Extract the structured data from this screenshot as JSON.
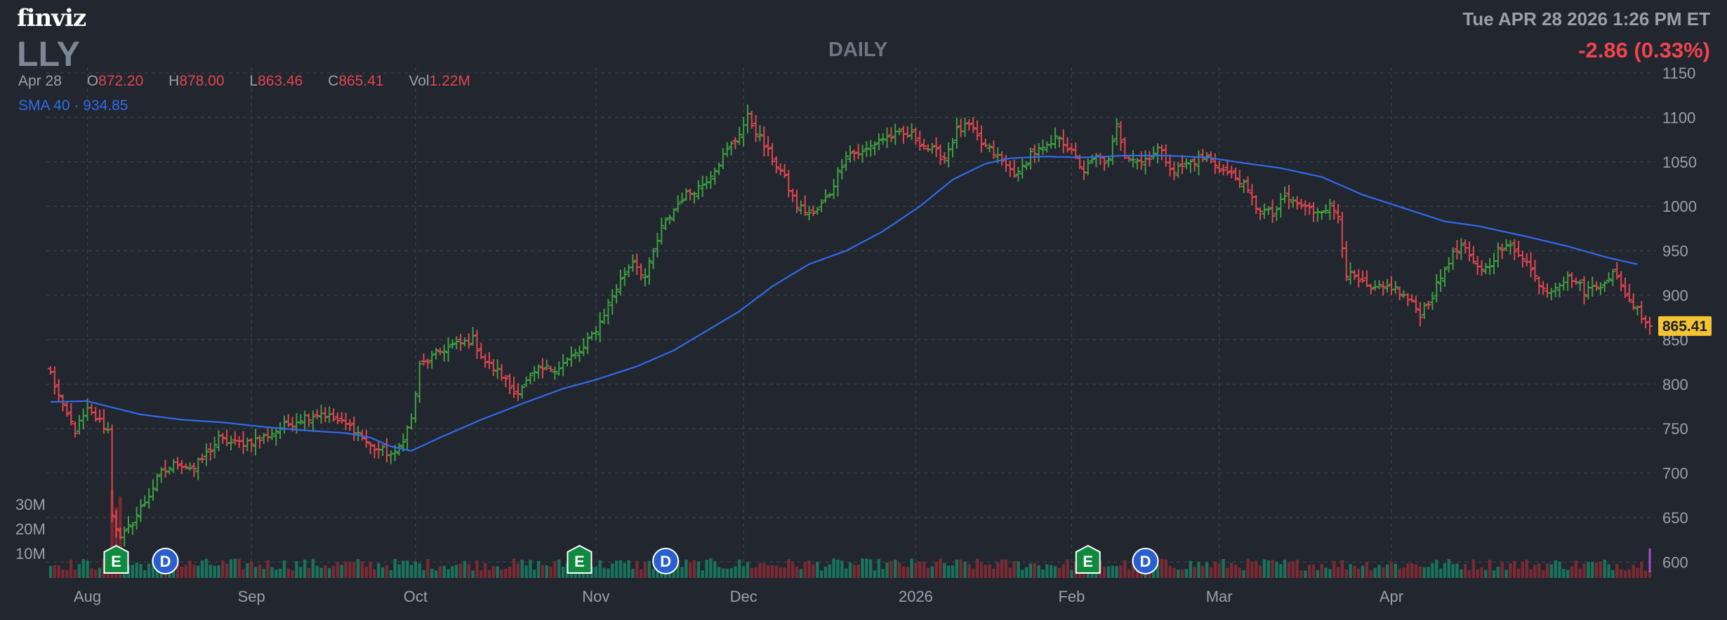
{
  "header": {
    "logo": "finviz",
    "ticker": "LLY",
    "period": "DAILY",
    "datetime": "Tue APR 28 2026 1:26 PM ET",
    "change": "-2.86 (0.33%)"
  },
  "ohlc": {
    "date": "Apr 28",
    "open_label": "O",
    "open": "872.20",
    "high_label": "H",
    "high": "878.00",
    "low_label": "L",
    "low": "863.46",
    "close_label": "C",
    "close": "865.41",
    "vol_label": "Vol",
    "vol": "1.22M"
  },
  "sma": {
    "label": "SMA 40",
    "separator": "·",
    "value": "934.85"
  },
  "colors": {
    "background": "#22262f",
    "up": "#3f9e43",
    "down": "#e0464e",
    "sma": "#2f6be8",
    "vol_up": "#18735a",
    "vol_down": "#7a2a33",
    "grid": "#3a3f4a",
    "last_price_bg": "#f4c430"
  },
  "chart_data": {
    "type": "ohlc",
    "ylim": [
      590,
      1150
    ],
    "y_ticks": [
      600,
      650,
      700,
      750,
      800,
      850,
      900,
      950,
      1000,
      1050,
      1100,
      1150
    ],
    "x_tick_labels": [
      "Aug",
      "Sep",
      "Oct",
      "Nov",
      "Dec",
      "2026",
      "Feb",
      "Mar",
      "Apr"
    ],
    "x_tick_index": [
      9,
      49,
      89,
      133,
      169,
      211,
      249,
      285,
      327
    ],
    "last_price": "865.41",
    "volume_axis": {
      "ticks": [
        "10M",
        "20M",
        "30M"
      ],
      "values": [
        10,
        20,
        30
      ],
      "max": 40,
      "unit": "M"
    },
    "events": [
      {
        "type": "E",
        "index": 16
      },
      {
        "type": "D",
        "index": 28
      },
      {
        "type": "E",
        "index": 129
      },
      {
        "type": "D",
        "index": 150
      },
      {
        "type": "E",
        "index": 253
      },
      {
        "type": "D",
        "index": 267
      }
    ],
    "close_anchors": [
      [
        0,
        812
      ],
      [
        3,
        773
      ],
      [
        6,
        748
      ],
      [
        9,
        770
      ],
      [
        12,
        758
      ],
      [
        14,
        748
      ],
      [
        15,
        655
      ],
      [
        17,
        625
      ],
      [
        19,
        638
      ],
      [
        23,
        668
      ],
      [
        27,
        700
      ],
      [
        31,
        712
      ],
      [
        35,
        705
      ],
      [
        41,
        738
      ],
      [
        45,
        733
      ],
      [
        51,
        738
      ],
      [
        55,
        748
      ],
      [
        61,
        762
      ],
      [
        66,
        768
      ],
      [
        71,
        756
      ],
      [
        74,
        750
      ],
      [
        78,
        730
      ],
      [
        84,
        720
      ],
      [
        88,
        760
      ],
      [
        90,
        820
      ],
      [
        96,
        840
      ],
      [
        103,
        850
      ],
      [
        106,
        825
      ],
      [
        110,
        810
      ],
      [
        113,
        790
      ],
      [
        119,
        815
      ],
      [
        124,
        820
      ],
      [
        130,
        840
      ],
      [
        134,
        870
      ],
      [
        137,
        900
      ],
      [
        140,
        925
      ],
      [
        142,
        940
      ],
      [
        145,
        920
      ],
      [
        149,
        975
      ],
      [
        154,
        1010
      ],
      [
        159,
        1025
      ],
      [
        163,
        1050
      ],
      [
        167,
        1075
      ],
      [
        170,
        1100
      ],
      [
        172,
        1085
      ],
      [
        175,
        1060
      ],
      [
        178,
        1040
      ],
      [
        182,
        1000
      ],
      [
        186,
        990
      ],
      [
        190,
        1015
      ],
      [
        194,
        1060
      ],
      [
        198,
        1060
      ],
      [
        202,
        1075
      ],
      [
        206,
        1080
      ],
      [
        210,
        1080
      ],
      [
        214,
        1065
      ],
      [
        218,
        1055
      ],
      [
        221,
        1085
      ],
      [
        224,
        1090
      ],
      [
        227,
        1070
      ],
      [
        230,
        1060
      ],
      [
        233,
        1045
      ],
      [
        236,
        1035
      ],
      [
        239,
        1060
      ],
      [
        243,
        1065
      ],
      [
        246,
        1080
      ],
      [
        249,
        1060
      ],
      [
        252,
        1040
      ],
      [
        255,
        1055
      ],
      [
        258,
        1050
      ],
      [
        260,
        1090
      ],
      [
        262,
        1060
      ],
      [
        266,
        1050
      ],
      [
        270,
        1065
      ],
      [
        274,
        1040
      ],
      [
        278,
        1050
      ],
      [
        282,
        1055
      ],
      [
        286,
        1040
      ],
      [
        290,
        1030
      ],
      [
        294,
        1000
      ],
      [
        298,
        990
      ],
      [
        301,
        1010
      ],
      [
        305,
        1000
      ],
      [
        308,
        995
      ],
      [
        312,
        1000
      ],
      [
        314,
        990
      ],
      [
        316,
        925
      ],
      [
        319,
        915
      ],
      [
        322,
        905
      ],
      [
        327,
        910
      ],
      [
        331,
        895
      ],
      [
        334,
        880
      ],
      [
        337,
        900
      ],
      [
        341,
        940
      ],
      [
        344,
        955
      ],
      [
        347,
        935
      ],
      [
        350,
        930
      ],
      [
        353,
        950
      ],
      [
        356,
        955
      ],
      [
        359,
        945
      ],
      [
        362,
        920
      ],
      [
        365,
        905
      ],
      [
        368,
        915
      ],
      [
        371,
        920
      ],
      [
        374,
        905
      ],
      [
        377,
        910
      ],
      [
        381,
        925
      ],
      [
        385,
        895
      ],
      [
        388,
        878
      ],
      [
        390,
        865
      ]
    ],
    "sma_anchors": [
      [
        0,
        780
      ],
      [
        9,
        781
      ],
      [
        14,
        775
      ],
      [
        22,
        766
      ],
      [
        32,
        760
      ],
      [
        42,
        757
      ],
      [
        52,
        752
      ],
      [
        62,
        748
      ],
      [
        72,
        745
      ],
      [
        78,
        740
      ],
      [
        83,
        730
      ],
      [
        88,
        725
      ],
      [
        95,
        740
      ],
      [
        105,
        760
      ],
      [
        115,
        778
      ],
      [
        125,
        795
      ],
      [
        133,
        805
      ],
      [
        143,
        820
      ],
      [
        152,
        838
      ],
      [
        160,
        860
      ],
      [
        168,
        882
      ],
      [
        176,
        910
      ],
      [
        185,
        935
      ],
      [
        194,
        950
      ],
      [
        203,
        972
      ],
      [
        212,
        1000
      ],
      [
        220,
        1030
      ],
      [
        228,
        1048
      ],
      [
        234,
        1054
      ],
      [
        242,
        1056
      ],
      [
        252,
        1055
      ],
      [
        262,
        1057
      ],
      [
        272,
        1057
      ],
      [
        282,
        1055
      ],
      [
        292,
        1048
      ],
      [
        300,
        1043
      ],
      [
        310,
        1033
      ],
      [
        320,
        1013
      ],
      [
        330,
        998
      ],
      [
        340,
        983
      ],
      [
        348,
        978
      ],
      [
        360,
        966
      ],
      [
        370,
        955
      ],
      [
        380,
        942
      ],
      [
        387,
        934.85
      ]
    ]
  }
}
